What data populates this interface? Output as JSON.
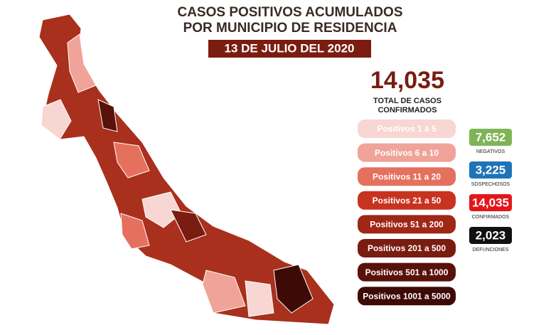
{
  "header": {
    "title_line1": "CASOS POSITIVOS ACUMULADOS",
    "title_line2": "POR MUNICIPIO DE RESIDENCIA",
    "date": "13 DE JULIO DEL 2020"
  },
  "total": {
    "value": "14,035",
    "label_line1": "TOTAL DE CASOS",
    "label_line2": "CONFIRMADOS"
  },
  "legend": [
    {
      "label": "Positivos 1 a 5",
      "color": "#f8d6d2"
    },
    {
      "label": "Positivos 6 a 10",
      "color": "#f0a398"
    },
    {
      "label": "Positivos 11 a 20",
      "color": "#e5705e"
    },
    {
      "label": "Positivos 21 a 50",
      "color": "#c8331f"
    },
    {
      "label": "Positivos 51 a 200",
      "color": "#a02615"
    },
    {
      "label": "Positivos 201 a 500",
      "color": "#7a1c10"
    },
    {
      "label": "Positivos 501 a 1000",
      "color": "#581209"
    },
    {
      "label": "Positivos 1001 a 5000",
      "color": "#3d0a05"
    }
  ],
  "stats": [
    {
      "value": "7,652",
      "label": "NEGATIVOS",
      "color": "#7fb456"
    },
    {
      "value": "3,225",
      "label": "SOSPECHOSOS",
      "color": "#1f74b8"
    },
    {
      "value": "14,035",
      "label": "CONFIRMADOS",
      "color": "#e3161b"
    },
    {
      "value": "2,023",
      "label": "DEFUNCIONES",
      "color": "#111111"
    }
  ]
}
